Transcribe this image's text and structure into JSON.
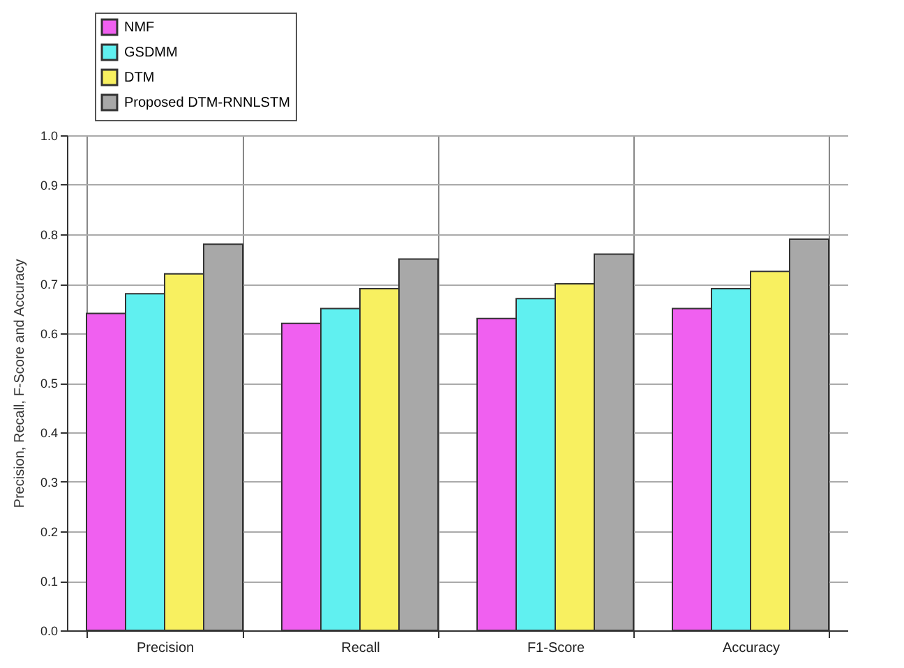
{
  "chart_data": {
    "type": "bar",
    "ylabel": "Precision, Recall, F-Score and Accuracy",
    "categories": [
      "Precision",
      "Recall",
      "F1-Score",
      "Accuracy"
    ],
    "series": [
      {
        "name": "NMF",
        "color": "#f060f0",
        "values": [
          0.64,
          0.62,
          0.63,
          0.65
        ]
      },
      {
        "name": "GSDMM",
        "color": "#60f0f0",
        "values": [
          0.68,
          0.65,
          0.67,
          0.69
        ]
      },
      {
        "name": "DTM",
        "color": "#f8f060",
        "values": [
          0.72,
          0.69,
          0.7,
          0.725
        ]
      },
      {
        "name": "Proposed DTM-RNNLSTM",
        "color": "#a8a8a8",
        "values": [
          0.78,
          0.75,
          0.76,
          0.79
        ]
      }
    ],
    "ylim": [
      0,
      1
    ],
    "yticks": [
      {
        "value": 0,
        "label": "0.0"
      },
      0.1,
      0.2,
      0.3,
      0.4,
      0.5,
      0.6,
      0.7,
      0.8,
      0.9,
      {
        "value": 1,
        "label": "1.0"
      }
    ],
    "grid": true,
    "legend": "top left"
  }
}
